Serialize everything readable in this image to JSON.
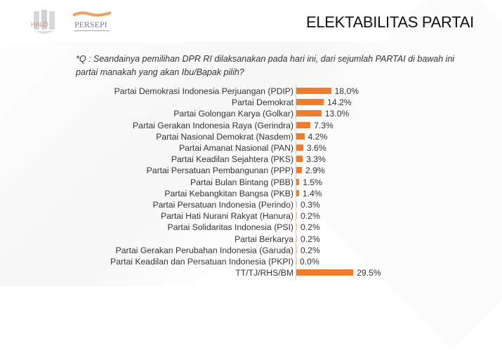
{
  "header": {
    "title": "ELEKTABILITAS PARTAI",
    "logos": [
      "halo-logo",
      "persepi-logo"
    ],
    "persepi_label": "PERSEPI"
  },
  "question": "*Q : Seandainya pemilihan DPR RI dilaksanakan pada hari ini, dari sejumlah PARTAI di bawah ini partai manakah yang akan Ibu/Bapak pilih?",
  "colors": {
    "bar": "#ee7d31",
    "title": "#111111",
    "text": "#333333"
  },
  "chart_data": {
    "type": "bar",
    "orientation": "horizontal",
    "title": "ELEKTABILITAS PARTAI",
    "xlabel": "",
    "ylabel": "",
    "categories": [
      "Partai Demokrasi Indonesia Perjuangan (PDIP)",
      "Partai Demokrat",
      "Partai Golongan Karya (Golkar)",
      "Partai Gerakan Indonesia Raya (Gerindra)",
      "Partai Nasional Demokrat (Nasdem)",
      "Partai Amanat Nasional (PAN)",
      "Partai Keadilan Sejahtera (PKS)",
      "Partai Persatuan Pembangunan (PPP)",
      "Partai Bulan Bintang (PBB)",
      "Partai Kebangkitan Bangsa (PKB)",
      "Partai Persatuan Indonesia (Perindo)",
      "Partai Hati Nurani Rakyat (Hanura)",
      "Partai Solidaritas Indonesia (PSI)",
      "Partai Berkarya",
      "Partai Gerakan Perubahan Indonesia (Garuda)",
      "Partai Keadilan dan Persatuan Indonesia (PKPI)",
      "TT/TJ/RHS/BM"
    ],
    "values": [
      18.0,
      14.2,
      13.0,
      7.3,
      4.2,
      3.6,
      3.3,
      2.9,
      1.5,
      1.4,
      0.3,
      0.2,
      0.2,
      0.2,
      0.2,
      0.0,
      29.5
    ],
    "value_labels": [
      "18,0%",
      "14.2%",
      "13.0%",
      "7.3%",
      "4.2%",
      "3.6%",
      "3.3%",
      "2.9%",
      "1.5%",
      "1.4%",
      "0.3%",
      "0.2%",
      "0.2%",
      "0.2%",
      "0.2%",
      "0.0%",
      "29.5%"
    ],
    "unit": "%",
    "grid": false,
    "legend": null
  }
}
